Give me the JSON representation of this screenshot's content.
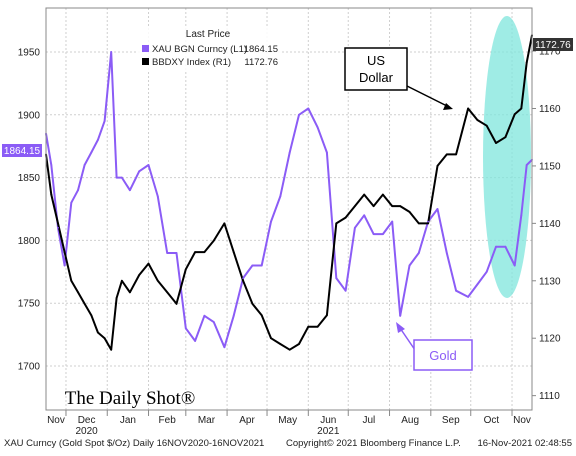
{
  "chart_data": {
    "type": "line",
    "title": "",
    "legend": {
      "title": "Last Price",
      "placement": "top-center",
      "entries": [
        {
          "label": "XAU BGN Curncy  (L1)",
          "value": "1864.15",
          "color": "#8b5cf6"
        },
        {
          "label": "BBDXY Index  (R1)",
          "value": "1172.76",
          "color": "#000000"
        }
      ]
    },
    "x_axis": {
      "ticks": [
        "Nov",
        "Dec",
        "Jan",
        "Feb",
        "Mar",
        "Apr",
        "May",
        "Jun",
        "Jul",
        "Aug",
        "Sep",
        "Oct",
        "Nov"
      ],
      "year_labels": [
        {
          "label": "2020",
          "under": "Dec"
        },
        {
          "label": "2021",
          "under": "Jun"
        }
      ],
      "range": [
        "2020-11-16",
        "2021-11-16"
      ]
    },
    "y_left": {
      "ticks": [
        "1700",
        "1750",
        "1800",
        "1850",
        "1900",
        "1950"
      ],
      "ylim": [
        1665,
        1985
      ],
      "last_value_tag": "1864.15"
    },
    "y_right": {
      "ticks": [
        "1110",
        "1120",
        "1130",
        "1140",
        "1150",
        "1160",
        "1170"
      ],
      "ylim": [
        1107.5,
        1177.5
      ],
      "last_value_tag": "1172.76"
    },
    "series": [
      {
        "name": "XAU BGN Curncy",
        "axis": "left",
        "color": "#8b5cf6",
        "x": [
          "2020-11-16",
          "2020-11-20",
          "2020-11-25",
          "2020-11-30",
          "2020-12-05",
          "2020-12-10",
          "2020-12-15",
          "2020-12-20",
          "2020-12-25",
          "2020-12-30",
          "2021-01-04",
          "2021-01-08",
          "2021-01-12",
          "2021-01-18",
          "2021-01-25",
          "2021-02-01",
          "2021-02-08",
          "2021-02-15",
          "2021-02-22",
          "2021-03-01",
          "2021-03-08",
          "2021-03-15",
          "2021-03-22",
          "2021-03-30",
          "2021-04-06",
          "2021-04-13",
          "2021-04-20",
          "2021-04-27",
          "2021-05-04",
          "2021-05-11",
          "2021-05-18",
          "2021-05-25",
          "2021-06-01",
          "2021-06-08",
          "2021-06-15",
          "2021-06-22",
          "2021-06-29",
          "2021-07-06",
          "2021-07-13",
          "2021-07-20",
          "2021-07-27",
          "2021-08-03",
          "2021-08-09",
          "2021-08-16",
          "2021-08-23",
          "2021-08-30",
          "2021-09-06",
          "2021-09-13",
          "2021-09-20",
          "2021-09-29",
          "2021-10-06",
          "2021-10-13",
          "2021-10-20",
          "2021-10-27",
          "2021-11-03",
          "2021-11-08",
          "2021-11-12",
          "2021-11-16"
        ],
        "values": [
          1885,
          1860,
          1810,
          1780,
          1830,
          1840,
          1860,
          1870,
          1880,
          1895,
          1950,
          1850,
          1850,
          1840,
          1855,
          1860,
          1835,
          1790,
          1790,
          1730,
          1720,
          1740,
          1735,
          1715,
          1740,
          1770,
          1780,
          1780,
          1815,
          1835,
          1870,
          1900,
          1905,
          1890,
          1870,
          1770,
          1760,
          1810,
          1820,
          1805,
          1805,
          1815,
          1740,
          1780,
          1790,
          1815,
          1825,
          1790,
          1760,
          1755,
          1765,
          1775,
          1795,
          1795,
          1780,
          1820,
          1860,
          1864.15
        ]
      },
      {
        "name": "BBDXY Index",
        "axis": "right",
        "color": "#000000",
        "x": [
          "2020-11-16",
          "2020-11-20",
          "2020-11-25",
          "2020-11-30",
          "2020-12-05",
          "2020-12-10",
          "2020-12-15",
          "2020-12-20",
          "2020-12-25",
          "2020-12-30",
          "2021-01-04",
          "2021-01-08",
          "2021-01-12",
          "2021-01-18",
          "2021-01-25",
          "2021-02-01",
          "2021-02-08",
          "2021-02-15",
          "2021-02-22",
          "2021-03-01",
          "2021-03-08",
          "2021-03-15",
          "2021-03-22",
          "2021-03-30",
          "2021-04-06",
          "2021-04-13",
          "2021-04-20",
          "2021-04-27",
          "2021-05-04",
          "2021-05-11",
          "2021-05-18",
          "2021-05-25",
          "2021-06-01",
          "2021-06-08",
          "2021-06-15",
          "2021-06-22",
          "2021-06-29",
          "2021-07-06",
          "2021-07-13",
          "2021-07-20",
          "2021-07-27",
          "2021-08-03",
          "2021-08-09",
          "2021-08-16",
          "2021-08-23",
          "2021-08-30",
          "2021-09-06",
          "2021-09-13",
          "2021-09-20",
          "2021-09-29",
          "2021-10-06",
          "2021-10-13",
          "2021-10-20",
          "2021-10-27",
          "2021-11-03",
          "2021-11-08",
          "2021-11-12",
          "2021-11-16"
        ],
        "values": [
          1152,
          1145,
          1140,
          1135,
          1130,
          1128,
          1126,
          1124,
          1121,
          1120,
          1118,
          1127,
          1130,
          1128,
          1131,
          1133,
          1130,
          1128,
          1126,
          1132,
          1135,
          1135,
          1137,
          1140,
          1135,
          1130,
          1126,
          1124,
          1120,
          1119,
          1118,
          1119,
          1122,
          1122,
          1124,
          1140,
          1141,
          1143,
          1145,
          1143,
          1145,
          1143,
          1143,
          1142,
          1140,
          1140,
          1150,
          1152,
          1152,
          1160,
          1158,
          1157,
          1154,
          1155,
          1159,
          1160,
          1168,
          1172.76
        ]
      }
    ],
    "annotations": [
      {
        "label": "US\nDollar",
        "target_series": "BBDXY Index"
      },
      {
        "label": "Gold",
        "target_series": "XAU BGN Curncy"
      }
    ]
  },
  "branding": "The Daily Shot®",
  "footer": {
    "left": "XAU Curncy (Gold Spot   $/Oz)  Daily 16NOV2020-16NOV2021",
    "center": "Copyright© 2021 Bloomberg Finance L.P.",
    "right": "16-Nov-2021 02:48:55"
  },
  "colors": {
    "gold_line": "#8b5cf6",
    "dollar_line": "#000000",
    "highlight": "#7fe6dc",
    "value_tag_gold": "#8b5cf6",
    "value_tag_dollar": "#333333"
  }
}
